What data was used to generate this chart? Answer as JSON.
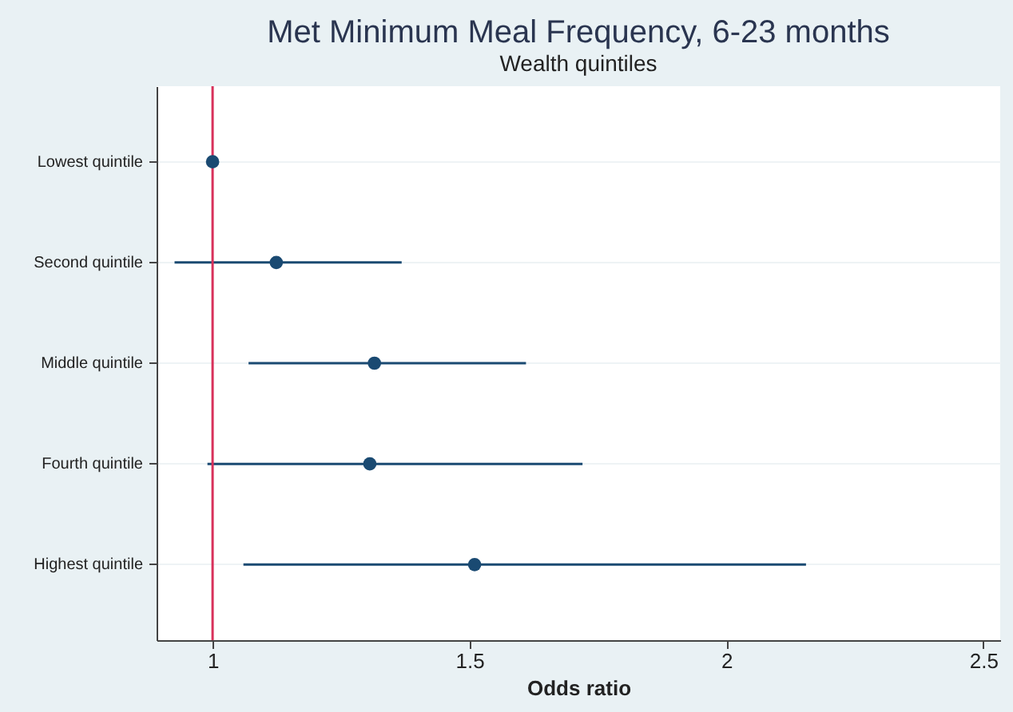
{
  "chart_data": {
    "type": "scatter",
    "orientation": "horizontal",
    "title": "Met Minimum Meal Frequency, 6-23 months",
    "subtitle": "Wealth quintiles",
    "xlabel": "Odds ratio",
    "categories": [
      "Lowest quintile",
      "Second quintile",
      "Middle quintile",
      "Fourth quintile",
      "Highest quintile"
    ],
    "values": [
      1.0,
      1.124,
      1.315,
      1.306,
      1.51
    ],
    "errors": [
      null,
      [
        0.926,
        1.368
      ],
      [
        1.07,
        1.61
      ],
      [
        0.99,
        1.72
      ],
      [
        1.06,
        2.155
      ]
    ],
    "color": "#1a4a72",
    "marker": "circle",
    "xlim": [
      0.891,
      2.533
    ],
    "xticks": [
      1,
      1.5,
      2,
      2.5
    ],
    "ref_lines": [
      {
        "axis": "x",
        "value": 1,
        "color": "#d8315b"
      }
    ],
    "grid": "y"
  }
}
